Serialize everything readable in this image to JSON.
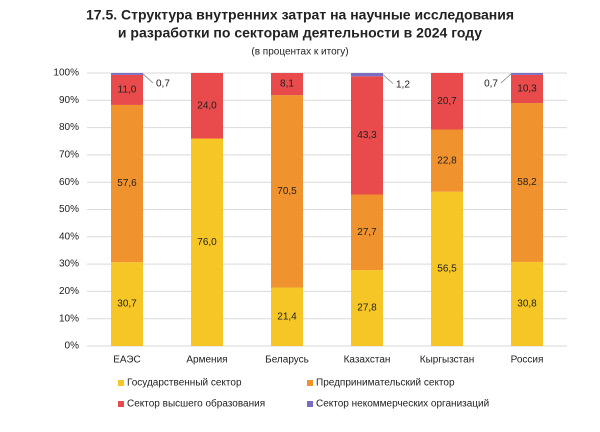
{
  "chart_data": {
    "type": "stacked_bar",
    "title": [
      "17.5. Структура внутренних затрат на научные исследования",
      "и разработки по секторам деятельности в 2024 году"
    ],
    "subtitle": "(в процентах к итогу)",
    "categories": [
      "ЕАЭС",
      "Армения",
      "Беларусь",
      "Казахстан",
      "Кыргызстан",
      "Россия"
    ],
    "series": [
      {
        "name": "Государственный сектор",
        "color": "#f6c627",
        "values": [
          30.7,
          76.0,
          21.4,
          27.8,
          56.5,
          30.8
        ],
        "value_labels": [
          "30,7",
          "76,0",
          "21,4",
          "27,8",
          "56,5",
          "30,8"
        ]
      },
      {
        "name": "Предпринимательский сектор",
        "color": "#f0922e",
        "values": [
          57.6,
          0,
          70.5,
          27.7,
          22.8,
          58.2
        ],
        "value_labels": [
          "57,6",
          null,
          "70,5",
          "27,7",
          "22,8",
          "58,2"
        ]
      },
      {
        "name": "Сектор высшего образования",
        "color": "#e94a4b",
        "values": [
          11.0,
          24.0,
          8.1,
          43.3,
          20.7,
          10.3
        ],
        "value_labels": [
          "11,0",
          "24,0",
          "8,1",
          "43,3",
          "20,7",
          "10,3"
        ]
      },
      {
        "name": "Сектор некоммерческих организаций",
        "color": "#7a6ec4",
        "values": [
          0.7,
          0,
          0,
          1.2,
          0,
          0.7
        ],
        "value_labels": [
          "0,7",
          null,
          null,
          "1,2",
          null,
          "0,7"
        ]
      }
    ],
    "ylim": [
      0,
      100
    ],
    "yticks": [
      {
        "value": 0,
        "label": "0%"
      },
      {
        "value": 10,
        "label": "10%"
      },
      {
        "value": 20,
        "label": "20%"
      },
      {
        "value": 30,
        "label": "30%"
      },
      {
        "value": 40,
        "label": "40%"
      },
      {
        "value": 50,
        "label": "50%"
      },
      {
        "value": 60,
        "label": "60%"
      },
      {
        "value": 70,
        "label": "70%"
      },
      {
        "value": 80,
        "label": "80%"
      },
      {
        "value": 90,
        "label": "90%"
      },
      {
        "value": 100,
        "label": "100%"
      }
    ],
    "grid": true
  }
}
